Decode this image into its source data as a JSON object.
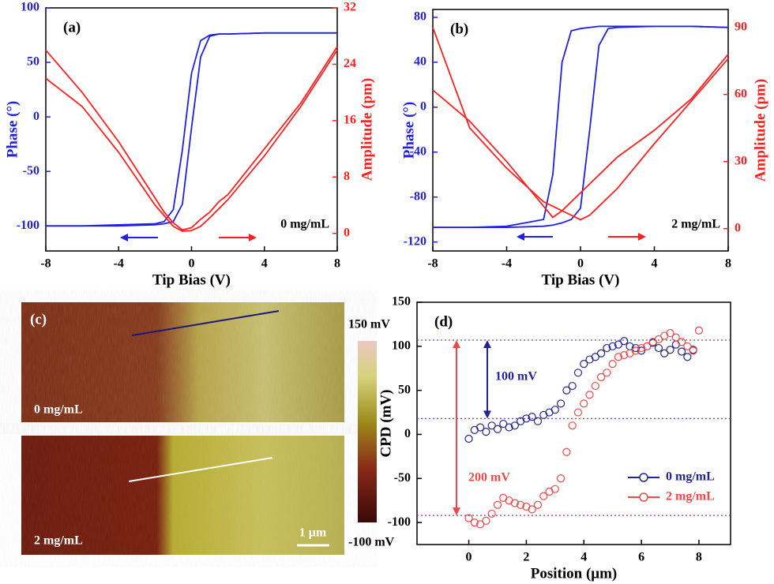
{
  "chart_data": [
    {
      "type": "line",
      "title": "(a)",
      "annotation": "0 mg/mL",
      "xlabel": "Tip Bias (V)",
      "ylabel": "Phase (°)",
      "y2label": "Amplitude (pm)",
      "x": [
        -8,
        -6,
        -4,
        -2,
        -1.5,
        -1,
        -0.5,
        0,
        0.5,
        1,
        1.5,
        2,
        4,
        6,
        8
      ],
      "xlim": [
        -8,
        8
      ],
      "xticks": [
        -8,
        -4,
        0,
        4,
        8
      ],
      "ylim": [
        -123,
        100
      ],
      "yticks": [
        -100,
        -50,
        0,
        50,
        100
      ],
      "y2lim": [
        -2.5,
        32
      ],
      "y2ticks": [
        0,
        8,
        16,
        24,
        32
      ],
      "series": [
        {
          "color": "#1f1fe6",
          "values": [
            -100,
            -100,
            -99,
            -98,
            -96,
            -85,
            -30,
            40,
            70,
            75,
            76,
            76,
            77,
            77,
            77
          ]
        },
        {
          "color": "#1f1fe6",
          "values": [
            -100,
            -100,
            -100,
            -99,
            -98,
            -96,
            -80,
            -10,
            55,
            74,
            76,
            76,
            77,
            77,
            77
          ]
        },
        {
          "color": "#ff1f1f",
          "axis": "y2",
          "values": [
            26,
            20,
            13,
            5,
            3,
            1.5,
            0.5,
            0.8,
            2,
            3,
            4.5,
            5.5,
            12,
            18.5,
            26.5
          ]
        },
        {
          "color": "#ff1f1f",
          "axis": "y2",
          "values": [
            22,
            18,
            11.5,
            4,
            2.5,
            1,
            0.3,
            0.4,
            1,
            2.2,
            3.5,
            4.8,
            11,
            18,
            26
          ]
        }
      ]
    },
    {
      "type": "line",
      "title": "(b)",
      "annotation": "2 mg/mL",
      "xlabel": "Tip Bias (V)",
      "ylabel": "Phase (°)",
      "y2label": "Amplitude (pm)",
      "x": [
        -8,
        -6,
        -4,
        -2,
        -1.5,
        -1,
        -0.5,
        0,
        0.5,
        1,
        1.5,
        2,
        4,
        6,
        8
      ],
      "xlim": [
        -8,
        8
      ],
      "xticks": [
        -8,
        -4,
        0,
        4,
        8
      ],
      "ylim": [
        -128,
        87
      ],
      "yticks": [
        -120,
        -80,
        -40,
        0,
        40,
        80
      ],
      "y2lim": [
        -10,
        98
      ],
      "y2ticks": [
        0,
        30,
        60,
        90
      ],
      "series": [
        {
          "color": "#1f1fe6",
          "values": [
            -107,
            -107,
            -106,
            -100,
            -60,
            40,
            68,
            70,
            71,
            72,
            72,
            72,
            72,
            72,
            71
          ]
        },
        {
          "color": "#1f1fe6",
          "values": [
            -107,
            -107,
            -107,
            -106,
            -105,
            -103,
            -100,
            -90,
            -20,
            55,
            70,
            71,
            72,
            72,
            71
          ]
        },
        {
          "color": "#ff1f1f",
          "axis": "y2",
          "values": [
            62,
            48,
            30,
            10,
            5,
            8,
            12,
            16,
            20,
            24,
            28,
            32,
            44,
            58,
            78
          ]
        },
        {
          "color": "#ff1f1f",
          "axis": "y2",
          "values": [
            90,
            45,
            27,
            12,
            10,
            8,
            6,
            4,
            6,
            10,
            14,
            18,
            38,
            57,
            76
          ]
        }
      ]
    },
    {
      "type": "image",
      "title": "(c)",
      "panels": [
        {
          "label": "0 mg/mL"
        },
        {
          "label": "2 mg/mL"
        }
      ],
      "scale_bar": "1 μm",
      "colorbar": {
        "lim": [
          -100,
          150
        ],
        "ticks": [
          {
            "value": 150,
            "label": "150 mV"
          },
          {
            "value": -100,
            "label": "-100 mV"
          }
        ]
      }
    },
    {
      "type": "scatter",
      "title": "(d)",
      "xlabel": "Position (μm)",
      "ylabel": "CPD (mV)",
      "annotations": [
        "100 mV",
        "200 mV"
      ],
      "xlim": [
        -1.8,
        9.1
      ],
      "xticks": [
        0,
        2,
        4,
        6,
        8
      ],
      "ylim": [
        -125,
        150
      ],
      "yticks": [
        -100,
        -50,
        0,
        50,
        100,
        150
      ],
      "reference_lines": [
        107,
        18,
        -92
      ],
      "series": [
        {
          "name": "0 mg/mL",
          "color": "#24248f",
          "x": [
            0,
            0.2,
            0.4,
            0.6,
            0.8,
            1,
            1.2,
            1.4,
            1.6,
            1.8,
            2,
            2.2,
            2.4,
            2.6,
            2.8,
            3,
            3.2,
            3.4,
            3.6,
            3.8,
            4,
            4.2,
            4.4,
            4.6,
            4.8,
            5,
            5.2,
            5.4,
            5.6,
            5.8,
            6,
            6.2,
            6.4,
            6.6,
            6.8,
            7,
            7.2,
            7.4,
            7.6,
            7.8
          ],
          "values": [
            -5,
            5,
            8,
            3,
            10,
            6,
            12,
            8,
            10,
            15,
            18,
            20,
            15,
            22,
            25,
            28,
            35,
            50,
            55,
            70,
            80,
            85,
            88,
            92,
            98,
            100,
            102,
            106,
            100,
            98,
            95,
            100,
            104,
            98,
            92,
            96,
            102,
            94,
            88,
            96
          ]
        },
        {
          "name": "2 mg/mL",
          "color": "#f04848",
          "x": [
            0,
            0.2,
            0.4,
            0.6,
            0.8,
            1,
            1.2,
            1.4,
            1.6,
            1.8,
            2,
            2.2,
            2.4,
            2.6,
            2.8,
            3,
            3.2,
            3.4,
            3.6,
            3.8,
            4,
            4.2,
            4.4,
            4.6,
            4.8,
            5,
            5.2,
            5.4,
            5.6,
            5.8,
            6,
            6.2,
            6.4,
            6.6,
            6.8,
            7,
            7.2,
            7.4,
            7.6,
            7.8,
            8
          ],
          "values": [
            -95,
            -100,
            -102,
            -98,
            -90,
            -80,
            -72,
            -75,
            -78,
            -80,
            -82,
            -85,
            -80,
            -70,
            -65,
            -62,
            -50,
            -20,
            10,
            25,
            35,
            45,
            55,
            65,
            70,
            80,
            88,
            90,
            92,
            95,
            98,
            100,
            105,
            108,
            112,
            115,
            110,
            105,
            100,
            95,
            118
          ]
        }
      ]
    }
  ]
}
